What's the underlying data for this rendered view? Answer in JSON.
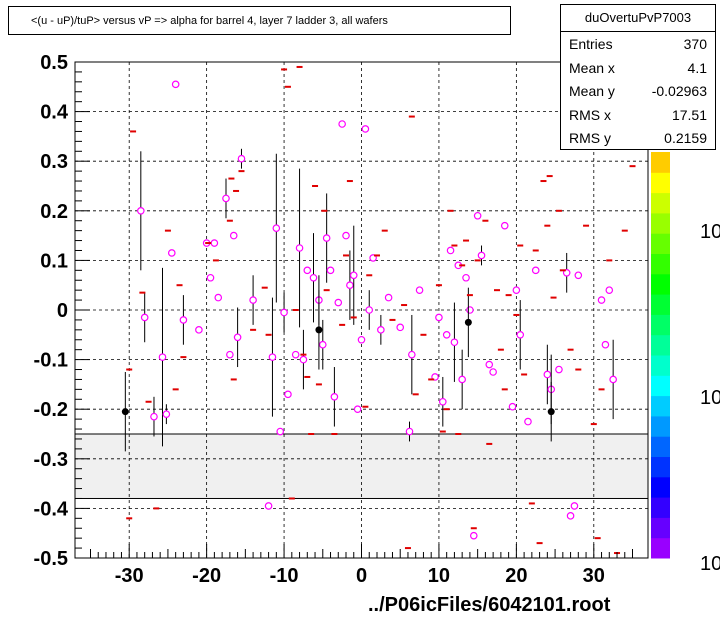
{
  "title": "<(u - uP)/tuP> versus  vP => alpha for barrel 4, layer 7 ladder 3, all wafers",
  "stats": {
    "name": "duOvertuPvP7003",
    "rows": [
      {
        "key": "Entries",
        "value": "370"
      },
      {
        "key": "Mean x",
        "value": "4.1"
      },
      {
        "key": "Mean y",
        "value": "-0.02963"
      },
      {
        "key": "RMS x",
        "value": "17.51"
      },
      {
        "key": "RMS y",
        "value": "0.2159"
      }
    ]
  },
  "footer": "../P06icFiles/6042101.root",
  "colors": {
    "marker": "#ff00ff",
    "box": "#e00000",
    "band": "#f0f0f0",
    "palette": [
      "#9900ff",
      "#6600ff",
      "#3300ff",
      "#0000ff",
      "#0033ff",
      "#0066ff",
      "#0099ff",
      "#00ccff",
      "#00ffff",
      "#00ffcc",
      "#00ff99",
      "#00ff66",
      "#00ff33",
      "#00ff00",
      "#33ff00",
      "#66ff00",
      "#99ff00",
      "#ccff00",
      "#ffff00",
      "#ffcc00"
    ]
  },
  "chart_data": {
    "type": "scatter",
    "xlim": [
      -37,
      37
    ],
    "ylim": [
      -0.5,
      0.5
    ],
    "xticks": [
      -30,
      -20,
      -10,
      0,
      10,
      20,
      30
    ],
    "yticks": [
      0.5,
      0.4,
      0.3,
      0.2,
      0.1,
      0,
      -0.1,
      -0.2,
      -0.3,
      -0.4,
      -0.5
    ],
    "grid": true,
    "palette_labels": [
      "10",
      "10",
      "10"
    ],
    "excluded_band": [
      -0.38,
      -0.25
    ],
    "series": [
      {
        "marker": "open-circle",
        "points": [
          {
            "x": -24.0,
            "y": 0.455,
            "err": 0.0
          },
          {
            "x": -28.5,
            "y": 0.2,
            "err": 0.12
          },
          {
            "x": -28.0,
            "y": -0.015,
            "err": 0.05
          },
          {
            "x": -26.8,
            "y": -0.215,
            "err": 0.04
          },
          {
            "x": -25.7,
            "y": -0.095,
            "err": 0.18
          },
          {
            "x": -25.2,
            "y": -0.21,
            "err": 0.02
          },
          {
            "x": -24.5,
            "y": 0.115,
            "err": 0.0
          },
          {
            "x": -23.0,
            "y": -0.02,
            "err": 0.05
          },
          {
            "x": -21.0,
            "y": -0.04,
            "err": 0.0
          },
          {
            "x": -20.0,
            "y": 0.135,
            "err": 0.0
          },
          {
            "x": -19.5,
            "y": 0.065,
            "err": 0.0
          },
          {
            "x": -19.0,
            "y": 0.135,
            "err": 0.0
          },
          {
            "x": -18.5,
            "y": 0.025,
            "err": 0.0
          },
          {
            "x": -17.5,
            "y": 0.225,
            "err": 0.04
          },
          {
            "x": -17.0,
            "y": -0.09,
            "err": 0.0
          },
          {
            "x": -16.5,
            "y": 0.15,
            "err": 0.0
          },
          {
            "x": -16.0,
            "y": -0.055,
            "err": 0.06
          },
          {
            "x": -15.5,
            "y": 0.305,
            "err": 0.02
          },
          {
            "x": -14.0,
            "y": 0.02,
            "err": 0.05
          },
          {
            "x": -12.0,
            "y": -0.395,
            "err": 0.0
          },
          {
            "x": -11.5,
            "y": -0.095,
            "err": 0.12
          },
          {
            "x": -11.0,
            "y": 0.165,
            "err": 0.15
          },
          {
            "x": -10.5,
            "y": -0.245,
            "err": 0.0
          },
          {
            "x": -10.0,
            "y": -0.005,
            "err": 0.04
          },
          {
            "x": -9.5,
            "y": -0.17,
            "err": 0.0
          },
          {
            "x": -8.5,
            "y": -0.09,
            "err": 0.0
          },
          {
            "x": -8.0,
            "y": 0.125,
            "err": 0.16
          },
          {
            "x": -7.5,
            "y": -0.1,
            "err": 0.06
          },
          {
            "x": -7.0,
            "y": 0.08,
            "err": 0.0
          },
          {
            "x": -6.2,
            "y": 0.065,
            "err": 0.09
          },
          {
            "x": -5.5,
            "y": 0.02,
            "err": 0.05
          },
          {
            "x": -5.0,
            "y": -0.07,
            "err": 0.05
          },
          {
            "x": -4.5,
            "y": 0.145,
            "err": 0.09
          },
          {
            "x": -4.0,
            "y": 0.08,
            "err": 0.0
          },
          {
            "x": -3.5,
            "y": -0.175,
            "err": 0.06
          },
          {
            "x": -3.0,
            "y": 0.015,
            "err": 0.0
          },
          {
            "x": -2.5,
            "y": 0.375,
            "err": 0.0
          },
          {
            "x": -2.0,
            "y": 0.15,
            "err": 0.0
          },
          {
            "x": -1.5,
            "y": 0.05,
            "err": 0.07
          },
          {
            "x": -1.0,
            "y": 0.07,
            "err": 0.1
          },
          {
            "x": -0.5,
            "y": -0.2,
            "err": 0.0
          },
          {
            "x": 0.0,
            "y": -0.06,
            "err": 0.0
          },
          {
            "x": 0.5,
            "y": 0.365,
            "err": 0.0
          },
          {
            "x": 1.0,
            "y": 0.0,
            "err": 0.04
          },
          {
            "x": 1.5,
            "y": 0.105,
            "err": 0.0
          },
          {
            "x": 2.5,
            "y": -0.04,
            "err": 0.03
          },
          {
            "x": 3.5,
            "y": 0.025,
            "err": 0.0
          },
          {
            "x": 5.0,
            "y": -0.035,
            "err": 0.0
          },
          {
            "x": 6.2,
            "y": -0.245,
            "err": 0.02
          },
          {
            "x": 6.5,
            "y": -0.09,
            "err": 0.08
          },
          {
            "x": 7.5,
            "y": 0.04,
            "err": 0.0
          },
          {
            "x": 9.5,
            "y": -0.135,
            "err": 0.0
          },
          {
            "x": 10.0,
            "y": -0.015,
            "err": 0.0
          },
          {
            "x": 10.5,
            "y": -0.185,
            "err": 0.05
          },
          {
            "x": 11.0,
            "y": -0.05,
            "err": 0.0
          },
          {
            "x": 11.5,
            "y": 0.12,
            "err": 0.0
          },
          {
            "x": 12.0,
            "y": -0.065,
            "err": 0.08
          },
          {
            "x": 12.5,
            "y": 0.09,
            "err": 0.0
          },
          {
            "x": 13.0,
            "y": -0.14,
            "err": 0.06
          },
          {
            "x": 13.5,
            "y": 0.065,
            "err": 0.0
          },
          {
            "x": 14.0,
            "y": 0.0,
            "err": 0.0
          },
          {
            "x": 14.5,
            "y": -0.455,
            "err": 0.0
          },
          {
            "x": 15.0,
            "y": 0.19,
            "err": 0.0
          },
          {
            "x": 15.5,
            "y": 0.11,
            "err": 0.02
          },
          {
            "x": 16.5,
            "y": -0.11,
            "err": 0.0
          },
          {
            "x": 17.0,
            "y": -0.125,
            "err": 0.0
          },
          {
            "x": 18.5,
            "y": 0.17,
            "err": 0.0
          },
          {
            "x": 19.5,
            "y": -0.195,
            "err": 0.0
          },
          {
            "x": 20.0,
            "y": 0.04,
            "err": 0.0
          },
          {
            "x": 20.5,
            "y": -0.05,
            "err": 0.07
          },
          {
            "x": 21.5,
            "y": -0.225,
            "err": 0.0
          },
          {
            "x": 22.5,
            "y": 0.08,
            "err": 0.0
          },
          {
            "x": 24.0,
            "y": -0.13,
            "err": 0.06
          },
          {
            "x": 24.5,
            "y": -0.16,
            "err": 0.07
          },
          {
            "x": 25.5,
            "y": -0.12,
            "err": 0.0
          },
          {
            "x": 26.5,
            "y": 0.075,
            "err": 0.04
          },
          {
            "x": 27.0,
            "y": -0.415,
            "err": 0.0
          },
          {
            "x": 27.5,
            "y": -0.395,
            "err": 0.0
          },
          {
            "x": 28.0,
            "y": 0.07,
            "err": 0.0
          },
          {
            "x": 31.0,
            "y": 0.02,
            "err": 0.0
          },
          {
            "x": 31.5,
            "y": -0.07,
            "err": 0.0
          },
          {
            "x": 32.0,
            "y": 0.04,
            "err": 0.0
          },
          {
            "x": 32.5,
            "y": -0.14,
            "err": 0.08
          }
        ]
      },
      {
        "marker": "filled-dot",
        "points": [
          {
            "x": -30.5,
            "y": -0.205,
            "err": 0.08
          },
          {
            "x": -5.5,
            "y": -0.04,
            "err": 0.08
          },
          {
            "x": 13.8,
            "y": -0.025,
            "err": 0.07
          },
          {
            "x": 24.5,
            "y": -0.205,
            "err": 0.06
          }
        ]
      },
      {
        "marker": "red-box",
        "points": [
          {
            "x": -29.5,
            "y": 0.36
          },
          {
            "x": -30.0,
            "y": -0.12
          },
          {
            "x": -30.0,
            "y": -0.42
          },
          {
            "x": -28.3,
            "y": 0.035
          },
          {
            "x": -27.5,
            "y": -0.185
          },
          {
            "x": -26.5,
            "y": -0.4
          },
          {
            "x": -25.0,
            "y": 0.16
          },
          {
            "x": -24.0,
            "y": -0.16
          },
          {
            "x": -23.5,
            "y": 0.05
          },
          {
            "x": -23.0,
            "y": -0.095
          },
          {
            "x": -19.8,
            "y": 0.135
          },
          {
            "x": -18.8,
            "y": 0.1
          },
          {
            "x": -17.0,
            "y": 0.18
          },
          {
            "x": -16.8,
            "y": 0.265
          },
          {
            "x": -16.5,
            "y": -0.14
          },
          {
            "x": -16.2,
            "y": 0.24
          },
          {
            "x": -15.5,
            "y": 0.28
          },
          {
            "x": -14.0,
            "y": -0.04
          },
          {
            "x": -12.5,
            "y": 0.045
          },
          {
            "x": -12.0,
            "y": -0.05
          },
          {
            "x": -10.0,
            "y": 0.485
          },
          {
            "x": -9.5,
            "y": 0.45
          },
          {
            "x": -9.0,
            "y": -0.38
          },
          {
            "x": -8.0,
            "y": 0.49
          },
          {
            "x": -8.5,
            "y": 0.0
          },
          {
            "x": -7.5,
            "y": -0.09
          },
          {
            "x": -7.0,
            "y": -0.135
          },
          {
            "x": -6.5,
            "y": -0.25
          },
          {
            "x": -6.0,
            "y": 0.25
          },
          {
            "x": -5.5,
            "y": -0.15
          },
          {
            "x": -4.8,
            "y": 0.2
          },
          {
            "x": -4.5,
            "y": 0.04
          },
          {
            "x": -3.5,
            "y": -0.25
          },
          {
            "x": -2.5,
            "y": -0.03
          },
          {
            "x": -2.0,
            "y": 0.11
          },
          {
            "x": -1.5,
            "y": 0.26
          },
          {
            "x": -1.0,
            "y": -0.015
          },
          {
            "x": 0.5,
            "y": -0.195
          },
          {
            "x": 1.0,
            "y": 0.07
          },
          {
            "x": 2.0,
            "y": 0.11
          },
          {
            "x": 3.0,
            "y": 0.16
          },
          {
            "x": 4.0,
            "y": -0.02
          },
          {
            "x": 5.5,
            "y": 0.01
          },
          {
            "x": 6.0,
            "y": -0.48
          },
          {
            "x": 6.5,
            "y": 0.39
          },
          {
            "x": 7.0,
            "y": -0.17
          },
          {
            "x": 8.0,
            "y": -0.05
          },
          {
            "x": 9.0,
            "y": -0.14
          },
          {
            "x": 10.0,
            "y": 0.05
          },
          {
            "x": 10.5,
            "y": -0.245
          },
          {
            "x": 11.0,
            "y": -0.2
          },
          {
            "x": 11.5,
            "y": 0.2
          },
          {
            "x": 12.0,
            "y": 0.13
          },
          {
            "x": 12.5,
            "y": -0.25
          },
          {
            "x": 13.0,
            "y": 0.09
          },
          {
            "x": 13.5,
            "y": 0.14
          },
          {
            "x": 14.0,
            "y": 0.03
          },
          {
            "x": 14.5,
            "y": -0.44
          },
          {
            "x": 15.0,
            "y": 0.1
          },
          {
            "x": 16.0,
            "y": 0.18
          },
          {
            "x": 16.5,
            "y": -0.27
          },
          {
            "x": 17.5,
            "y": 0.04
          },
          {
            "x": 18.0,
            "y": -0.08
          },
          {
            "x": 18.5,
            "y": -0.16
          },
          {
            "x": 19.0,
            "y": 0.03
          },
          {
            "x": 20.0,
            "y": -0.01
          },
          {
            "x": 20.5,
            "y": 0.13
          },
          {
            "x": 21.0,
            "y": -0.13
          },
          {
            "x": 22.0,
            "y": -0.39
          },
          {
            "x": 22.5,
            "y": 0.12
          },
          {
            "x": 23.0,
            "y": -0.47
          },
          {
            "x": 23.5,
            "y": 0.26
          },
          {
            "x": 24.0,
            "y": 0.17
          },
          {
            "x": 24.3,
            "y": 0.27
          },
          {
            "x": 24.8,
            "y": 0.025
          },
          {
            "x": 25.5,
            "y": 0.2
          },
          {
            "x": 26.0,
            "y": 0.08
          },
          {
            "x": 27.0,
            "y": -0.08
          },
          {
            "x": 28.0,
            "y": -0.12
          },
          {
            "x": 29.0,
            "y": 0.17
          },
          {
            "x": 29.5,
            "y": 0.34
          },
          {
            "x": 30.0,
            "y": -0.23
          },
          {
            "x": 30.5,
            "y": -0.46
          },
          {
            "x": 31.0,
            "y": -0.16
          },
          {
            "x": 32.0,
            "y": 0.1
          },
          {
            "x": 33.0,
            "y": -0.49
          },
          {
            "x": 34.0,
            "y": 0.16
          },
          {
            "x": 35.0,
            "y": 0.29
          }
        ]
      }
    ]
  }
}
